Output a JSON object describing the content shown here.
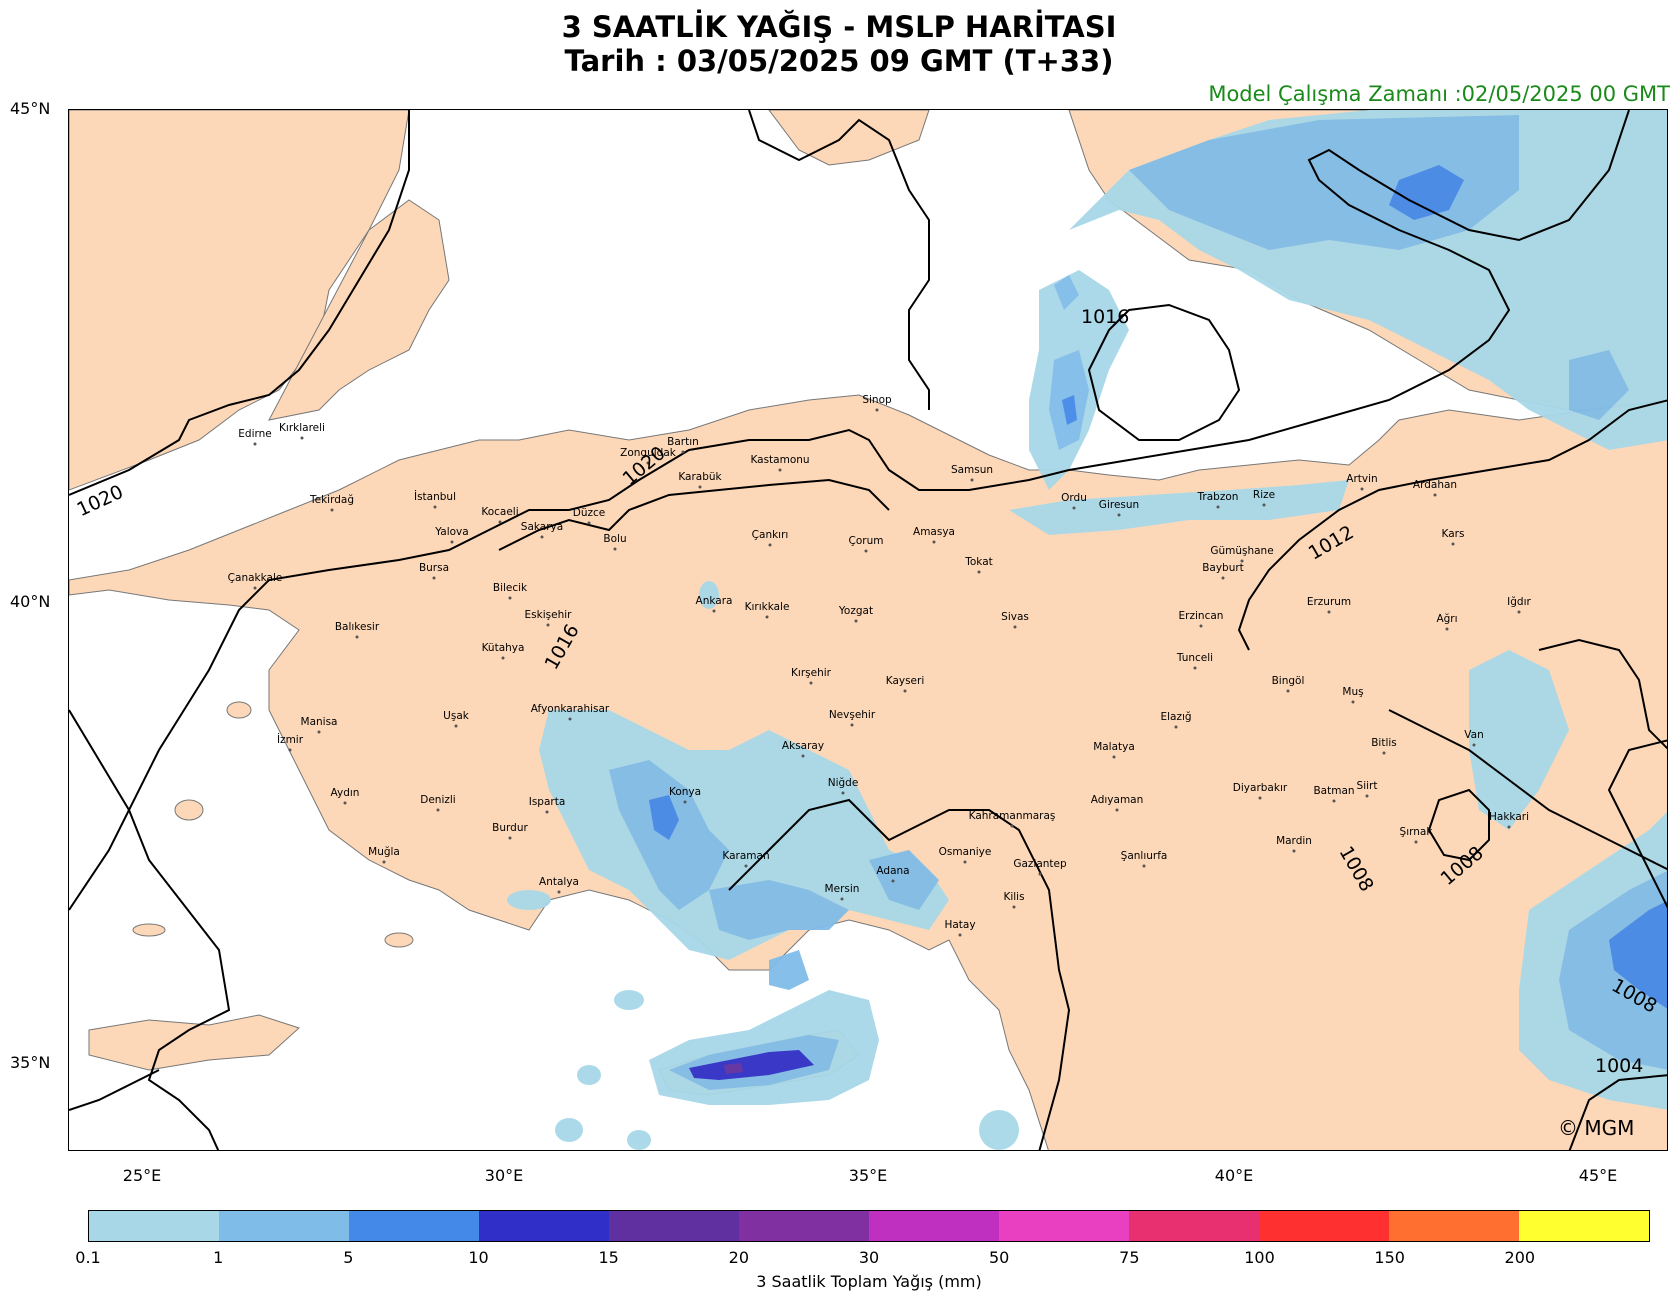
{
  "title_line1": "3 SAATLİK YAĞIŞ - MSLP HARİTASI",
  "title_line2": "Tarih : 03/05/2025  09 GMT (T+33)",
  "model_run": "Model Çalışma Zamanı :02/05/2025  00 GMT",
  "copyright": "© MGM",
  "lat_labels": [
    "45°N",
    "40°N",
    "35°N"
  ],
  "lon_labels": [
    "25°E",
    "30°E",
    "35°E",
    "40°E",
    "45°E"
  ],
  "isobar_labels": [
    "1020",
    "1020",
    "1016",
    "1016",
    "1012",
    "1008",
    "1008",
    "1008",
    "1004"
  ],
  "cities": [
    "Kırklareli",
    "Edirne",
    "Tekirdağ",
    "İstanbul",
    "Kocaeli",
    "Yalova",
    "Sakarya",
    "Düzce",
    "Bolu",
    "Zonguldak",
    "Bartın",
    "Karabük",
    "Kastamonu",
    "Sinop",
    "Samsun",
    "Çanakkale",
    "Bursa",
    "Bilecik",
    "Eskişehir",
    "Balıkesir",
    "Kütahya",
    "Ankara",
    "Kırıkkale",
    "Çankırı",
    "Çorum",
    "Amasya",
    "Tokat",
    "Yozgat",
    "Sivas",
    "Ordu",
    "Giresun",
    "Trabzon",
    "Rize",
    "Artvin",
    "Ardahan",
    "Kars",
    "Gümüşhane",
    "Bayburt",
    "Erzincan",
    "Erzurum",
    "Ağrı",
    "Iğdır",
    "Tunceli",
    "Bingöl",
    "Muş",
    "Elazığ",
    "Malatya",
    "Kırşehir",
    "Nevşehir",
    "Kayseri",
    "Aksaray",
    "Niğde",
    "Konya",
    "Afyonkarahisar",
    "Uşak",
    "Manisa",
    "İzmir",
    "Aydın",
    "Denizli",
    "Isparta",
    "Burdur",
    "Muğla",
    "Antalya",
    "Karaman",
    "Mersin",
    "Adana",
    "Osmaniye",
    "Hatay",
    "Kilis",
    "Gaziantep",
    "Kahramanmaraş",
    "Adıyaman",
    "Şanlıurfa",
    "Diyarbakır",
    "Batman",
    "Siirt",
    "Mardin",
    "Şırnak",
    "Hakkari",
    "Van",
    "Bitlis"
  ],
  "colorbar": {
    "label": "3 Saatlik Toplam Yağış (mm)",
    "ticks": [
      "0.1",
      "1",
      "5",
      "10",
      "15",
      "20",
      "30",
      "50",
      "75",
      "100",
      "150",
      "200"
    ],
    "colors": [
      "#a8d8e8",
      "#80bce8",
      "#4488e8",
      "#3030c8",
      "#6030a0",
      "#8030a0",
      "#c030c0",
      "#e840c0",
      "#e83070",
      "#ff3030",
      "#ff7030",
      "#ffff30"
    ]
  },
  "colors": {
    "land": "#fdd8b8",
    "sea": "#ffffff",
    "border": "#666666",
    "isobar": "#000000",
    "model_run": "#1a8a1a"
  }
}
